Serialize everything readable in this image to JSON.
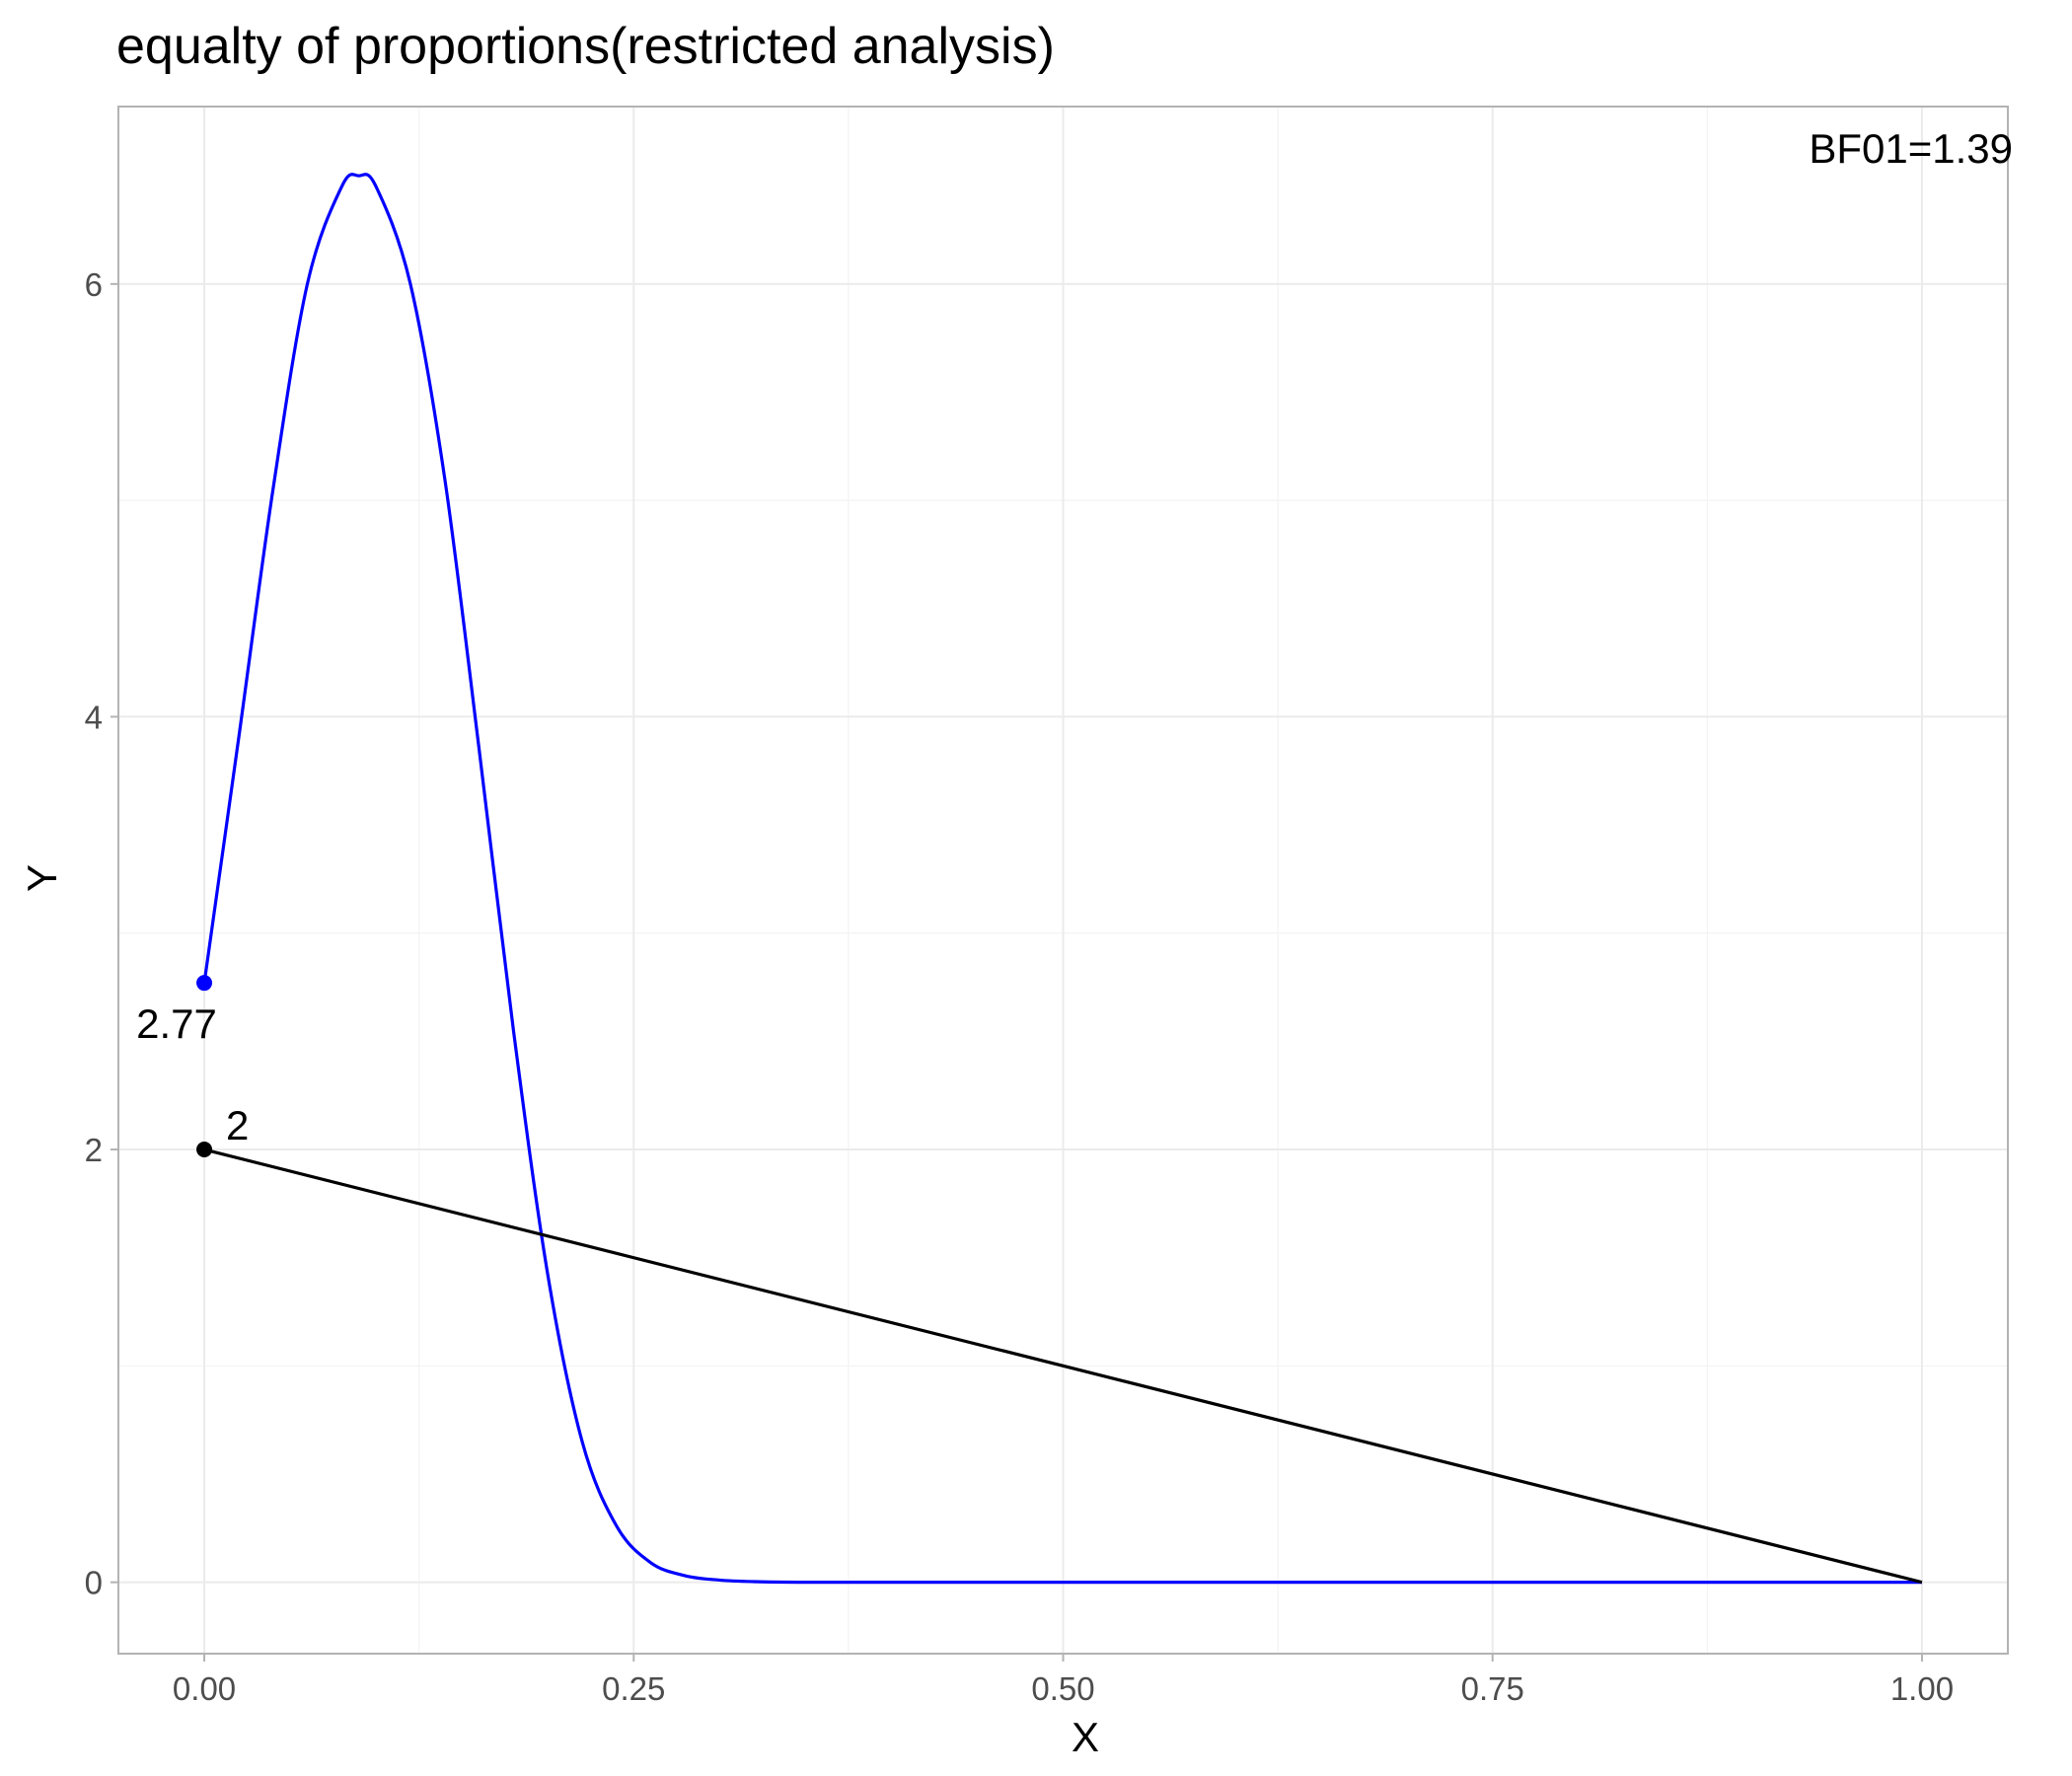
{
  "chart_data": {
    "type": "line",
    "title": "equalty of proportions(restricted analysis)",
    "xlabel": "X",
    "ylabel": "Y",
    "xlim": [
      -0.05,
      1.05
    ],
    "ylim": [
      -0.33,
      6.82
    ],
    "x_ticks": [
      0.0,
      0.25,
      0.5,
      0.75,
      1.0
    ],
    "x_tick_labels": [
      "0.00",
      "0.25",
      "0.50",
      "0.75",
      "1.00"
    ],
    "y_ticks": [
      0,
      2,
      4,
      6
    ],
    "y_tick_labels": [
      "0",
      "2",
      "4",
      "6"
    ],
    "grid": true,
    "series": [
      {
        "color": "#0000ff",
        "x": [
          0.0,
          0.02,
          0.04,
          0.06,
          0.08,
          0.09,
          0.1,
          0.12,
          0.14,
          0.16,
          0.18,
          0.2,
          0.22,
          0.24,
          0.26,
          0.28,
          0.3,
          0.32,
          0.35,
          0.4,
          0.5,
          0.6,
          0.7,
          0.8,
          0.9,
          1.0
        ],
        "values": [
          2.77,
          3.9,
          5.05,
          6.0,
          6.45,
          6.5,
          6.45,
          6.0,
          5.1,
          3.85,
          2.55,
          1.42,
          0.65,
          0.26,
          0.09,
          0.03,
          0.01,
          0.003,
          0.0,
          0.0,
          0.0,
          0.0,
          0.0,
          0.0,
          0.0,
          0.0
        ]
      },
      {
        "color": "#000000",
        "x": [
          0.0,
          1.0
        ],
        "values": [
          2.0,
          0.0
        ]
      }
    ],
    "points": [
      {
        "x": 0.0,
        "y": 2.77,
        "label": "2.77",
        "color": "#0000ff"
      },
      {
        "x": 0.0,
        "y": 2.0,
        "label": "2",
        "color": "#000000"
      }
    ],
    "annotations": [
      {
        "text": "BF01=1.39",
        "position": "top-right"
      }
    ]
  }
}
